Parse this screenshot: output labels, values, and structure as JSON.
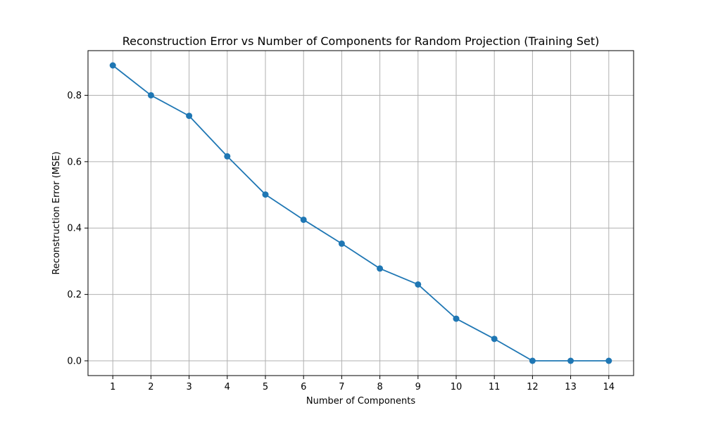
{
  "chart_data": {
    "type": "line",
    "title": "Reconstruction Error vs Number of Components for Random Projection (Training Set)",
    "xlabel": "Number of Components",
    "ylabel": "Reconstruction Error (MSE)",
    "x": [
      1,
      2,
      3,
      4,
      5,
      6,
      7,
      8,
      9,
      10,
      11,
      12,
      13,
      14
    ],
    "x_tick_labels": [
      "1",
      "2",
      "3",
      "4",
      "5",
      "6",
      "7",
      "8",
      "9",
      "10",
      "11",
      "12",
      "13",
      "14"
    ],
    "y_ticks": [
      0.0,
      0.2,
      0.4,
      0.6,
      0.8
    ],
    "y_tick_labels": [
      "0.0",
      "0.2",
      "0.4",
      "0.6",
      "0.8"
    ],
    "series": [
      {
        "values": [
          0.89,
          0.8,
          0.738,
          0.616,
          0.501,
          0.425,
          0.353,
          0.278,
          0.23,
          0.127,
          0.066,
          0.0,
          0.0,
          0.0
        ],
        "color": "#1f77b4",
        "marker": "circle"
      }
    ],
    "xlim": [
      0.35,
      14.65
    ],
    "ylim": [
      -0.0445,
      0.9345
    ],
    "grid": true,
    "grid_color": "#b0b0b0"
  }
}
